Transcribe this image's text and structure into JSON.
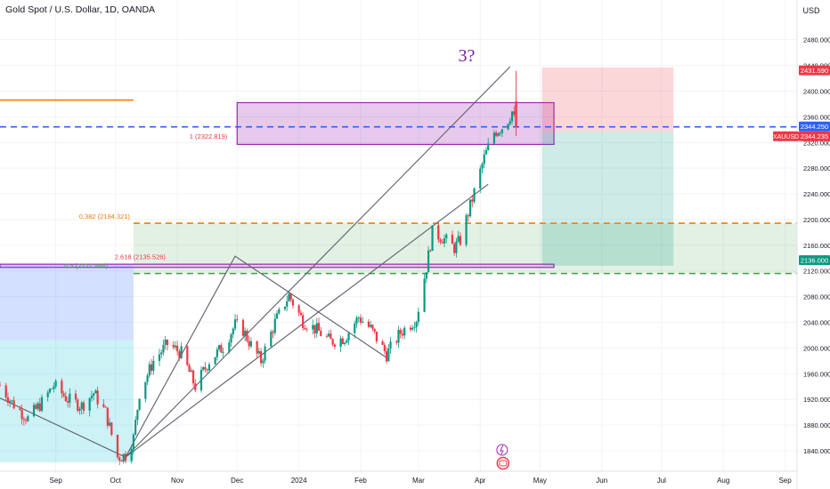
{
  "chart_title": "Gold Spot / U.S. Dollar, 1D, OANDA",
  "currency": "USD",
  "annotation": "3?",
  "colors": {
    "up": "#089981",
    "down": "#f23645",
    "grid": "#f0f3fa",
    "axis_text": "#131722",
    "fib_orange": "#f57c00",
    "fib_green": "#43a047",
    "purple": "#9c27b0",
    "blue_dash": "#2962ff",
    "stop_zone": "#f7c1c5",
    "target_zone": "#bfe6dd"
  },
  "chart_data": {
    "type": "candlestick",
    "symbol": "XAUUSD",
    "timeframe": "1D",
    "y_axis": {
      "ticks": [
        2480,
        2440,
        2400,
        2360,
        2320,
        2280,
        2240,
        2200,
        2160,
        2120,
        2080,
        2040,
        2000,
        1960,
        1920,
        1880,
        1840
      ],
      "tick_labels": [
        "2480.000",
        "2440.000",
        "2400.000",
        "2360.000",
        "2320.000",
        "2280.000",
        "2240.000",
        "2200.000",
        "2160.000",
        "2120.000",
        "2080.000",
        "2040.000",
        "2000.000",
        "1960.000",
        "1920.000",
        "1880.000",
        "1840.000"
      ],
      "range": [
        1822,
        2528
      ]
    },
    "x_axis": {
      "range": [
        "2023-08-04",
        "2024-09-07"
      ],
      "ticks": [
        {
          "label": "Sep",
          "date": "2023-09-01"
        },
        {
          "label": "Oct",
          "date": "2023-10-01"
        },
        {
          "label": "Nov",
          "date": "2023-11-01"
        },
        {
          "label": "Dec",
          "date": "2023-12-01"
        },
        {
          "label": "2024",
          "date": "2024-01-01"
        },
        {
          "label": "Feb",
          "date": "2024-02-01"
        },
        {
          "label": "Mar",
          "date": "2024-03-01"
        },
        {
          "label": "Apr",
          "date": "2024-04-01"
        },
        {
          "label": "May",
          "date": "2024-05-01"
        },
        {
          "label": "Jun",
          "date": "2024-06-01"
        },
        {
          "label": "Jul",
          "date": "2024-07-01"
        },
        {
          "label": "Aug",
          "date": "2024-08-01"
        },
        {
          "label": "Sep",
          "date": "2024-09-01"
        }
      ]
    },
    "price_path": [
      [
        "2023-08-04",
        1942
      ],
      [
        "2023-08-10",
        1915
      ],
      [
        "2023-08-18",
        1890
      ],
      [
        "2023-08-25",
        1915
      ],
      [
        "2023-08-31",
        1942
      ],
      [
        "2023-09-07",
        1920
      ],
      [
        "2023-09-14",
        1910
      ],
      [
        "2023-09-20",
        1930
      ],
      [
        "2023-09-26",
        1900
      ],
      [
        "2023-10-02",
        1830
      ],
      [
        "2023-10-06",
        1833
      ],
      [
        "2023-10-10",
        1860
      ],
      [
        "2023-10-13",
        1930
      ],
      [
        "2023-10-20",
        1980
      ],
      [
        "2023-10-27",
        2006
      ],
      [
        "2023-11-03",
        1992
      ],
      [
        "2023-11-10",
        1940
      ],
      [
        "2023-11-17",
        1980
      ],
      [
        "2023-11-24",
        2002
      ],
      [
        "2023-11-30",
        2036
      ],
      [
        "2023-12-04",
        2028
      ],
      [
        "2023-12-08",
        2004
      ],
      [
        "2023-12-13",
        1980
      ],
      [
        "2023-12-20",
        2040
      ],
      [
        "2023-12-27",
        2082
      ],
      [
        "2024-01-03",
        2042
      ],
      [
        "2024-01-10",
        2028
      ],
      [
        "2024-01-17",
        2010
      ],
      [
        "2024-01-24",
        2016
      ],
      [
        "2024-01-31",
        2048
      ],
      [
        "2024-02-06",
        2030
      ],
      [
        "2024-02-14",
        1990
      ],
      [
        "2024-02-21",
        2024
      ],
      [
        "2024-02-29",
        2046
      ],
      [
        "2024-03-05",
        2126
      ],
      [
        "2024-03-08",
        2180
      ],
      [
        "2024-03-13",
        2172
      ],
      [
        "2024-03-19",
        2156
      ],
      [
        "2024-03-22",
        2168
      ],
      [
        "2024-03-28",
        2232
      ],
      [
        "2024-04-03",
        2296
      ],
      [
        "2024-04-08",
        2336
      ],
      [
        "2024-04-12",
        2344
      ],
      [
        "2024-04-15",
        2356
      ],
      [
        "2024-04-17",
        2368
      ],
      [
        "2024-04-19",
        2344
      ]
    ],
    "current_candle": {
      "date": "2024-04-19",
      "open": 2384,
      "high": 2431.59,
      "low": 2330,
      "close": 2344.25
    },
    "price_labels": [
      {
        "value": 2431.59,
        "text": "2431.590",
        "color": "#f23645"
      },
      {
        "value": 2344.25,
        "text": "2344.250",
        "color": "#2962ff"
      },
      {
        "value": 2344.235,
        "text": "2344.235",
        "color": "#f23645",
        "ticker": "XAUUSD"
      },
      {
        "value": 2136.0,
        "text": "2136.000",
        "color": "#089981"
      }
    ],
    "horizontal_lines": [
      {
        "value": 2344.25,
        "style": "dashed",
        "color": "#2962ff",
        "from": "2023-08-04"
      },
      {
        "value": 2194.321,
        "style": "dashed",
        "color": "#f57c00",
        "from": "2023-10-10",
        "label": "0.382 (2194.321)"
      },
      {
        "value": 2116,
        "style": "dashed",
        "color": "#43a047",
        "from": "2023-10-10"
      },
      {
        "value": 2386,
        "style": "solid",
        "color": "#f57c00",
        "from": "2023-08-04",
        "to": "2023-10-10"
      }
    ],
    "fib_labels": [
      {
        "text": "1 (2322.819)",
        "value": 2322.819,
        "date": "2023-11-27",
        "color": "#f23645"
      },
      {
        "text": "2.618 (2135.526)",
        "value": 2135.526,
        "date": "2023-10-27",
        "color": "#f23645"
      },
      {
        "text": "0.5 (2121.988)",
        "value": 2121.988,
        "date": "2023-09-28",
        "color": "#43a047"
      }
    ],
    "zones": [
      {
        "kind": "resistance-box",
        "from": "2023-12-01",
        "to": "2024-05-08",
        "high": 2382,
        "low": 2317,
        "fill": "#9c27b0",
        "alpha": 0.25,
        "stroke": "#9c27b0"
      },
      {
        "kind": "support-band",
        "from": "2023-10-10",
        "to": "2024-09-07",
        "high": 2194.321,
        "low": 2116,
        "fill": "#43a047",
        "alpha": 0.15
      },
      {
        "kind": "support-box",
        "from": "2023-08-04",
        "to": "2024-05-08",
        "high": 2130.5,
        "low": 2125.5,
        "fill": "#9c27b0",
        "alpha": 0.15,
        "stroke": "#9c27b0"
      },
      {
        "kind": "short-stop",
        "from": "2024-05-02",
        "to": "2024-07-07",
        "high": 2437,
        "low": 2337,
        "fill": "#f23645",
        "alpha": 0.2
      },
      {
        "kind": "short-target",
        "from": "2024-05-02",
        "to": "2024-07-07",
        "high": 2337,
        "low": 2128,
        "fill": "#089981",
        "alpha": 0.2
      },
      {
        "kind": "range-top",
        "from": "2023-08-04",
        "to": "2023-10-10",
        "high": 2130,
        "low": 2012,
        "fill": "#2962ff",
        "alpha": 0.2
      },
      {
        "kind": "range-bottom",
        "from": "2023-08-04",
        "to": "2023-10-10",
        "high": 2012,
        "low": 1822,
        "fill": "#00bcd4",
        "alpha": 0.2
      }
    ],
    "trend_lines": [
      {
        "points": [
          [
            "2023-08-04",
            1922
          ],
          [
            "2023-10-06",
            1830
          ]
        ]
      },
      {
        "points": [
          [
            "2023-10-06",
            1830
          ],
          [
            "2023-11-30",
            2143
          ],
          [
            "2024-02-14",
            1985
          ]
        ]
      },
      {
        "points": [
          [
            "2023-10-06",
            1830
          ],
          [
            "2024-04-16",
            2438
          ]
        ]
      },
      {
        "points": [
          [
            "2023-10-06",
            1830
          ],
          [
            "2024-04-05",
            2255
          ]
        ]
      }
    ],
    "events": [
      {
        "date": "2024-04-12",
        "kind": "flash"
      },
      {
        "date": "2024-04-12",
        "kind": "dividends"
      }
    ]
  }
}
